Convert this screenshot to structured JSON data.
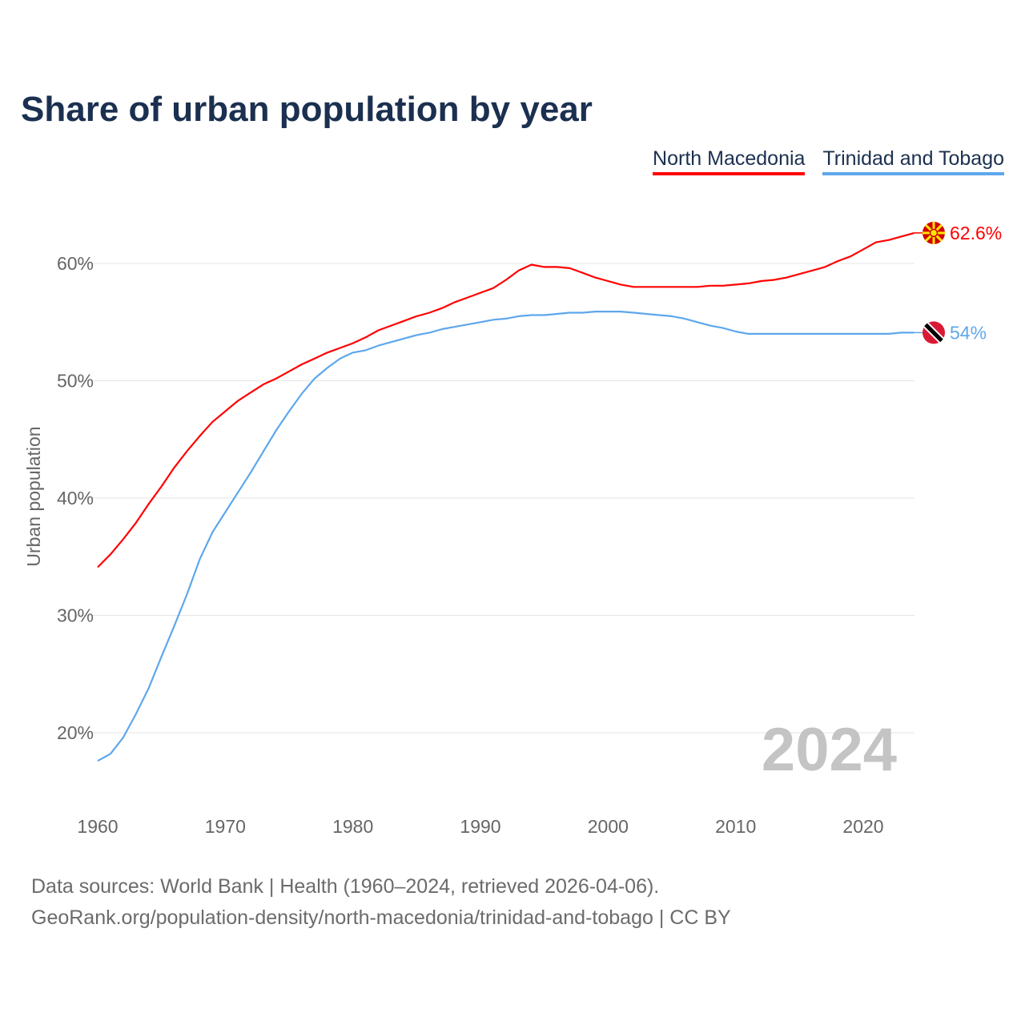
{
  "chart_data": {
    "type": "line",
    "title": "Share of urban population by year",
    "ylabel": "Urban population",
    "xlabel": "",
    "ylim": [
      15,
      65
    ],
    "xlim": [
      1960,
      2024
    ],
    "y_ticks": [
      "20%",
      "30%",
      "40%",
      "50%",
      "60%"
    ],
    "y_tick_values": [
      20,
      30,
      40,
      50,
      60
    ],
    "x_ticks": [
      "1960",
      "1970",
      "1980",
      "1990",
      "2000",
      "2010",
      "2020"
    ],
    "x_tick_values": [
      1960,
      1970,
      1980,
      1990,
      2000,
      2010,
      2020
    ],
    "grid": true,
    "legend_placement": "top-right",
    "year_watermark": "2024",
    "x_start": 1960,
    "series": [
      {
        "name": "North Macedonia",
        "color": "#ff0000",
        "end_label": "62.6%",
        "values": [
          34.1,
          35.2,
          36.5,
          37.9,
          39.5,
          41.0,
          42.6,
          44.0,
          45.3,
          46.5,
          47.4,
          48.3,
          49.0,
          49.7,
          50.2,
          50.8,
          51.4,
          51.9,
          52.4,
          52.8,
          53.2,
          53.7,
          54.3,
          54.7,
          55.1,
          55.5,
          55.8,
          56.2,
          56.7,
          57.1,
          57.5,
          57.9,
          58.6,
          59.4,
          59.9,
          59.7,
          59.7,
          59.6,
          59.2,
          58.8,
          58.5,
          58.2,
          58.0,
          58.0,
          58.0,
          58.0,
          58.0,
          58.0,
          58.1,
          58.1,
          58.2,
          58.3,
          58.5,
          58.6,
          58.8,
          59.1,
          59.4,
          59.7,
          60.2,
          60.6,
          61.2,
          61.8,
          62.0,
          62.3,
          62.6
        ]
      },
      {
        "name": "Trinidad and Tobago",
        "color": "#5ea7ec",
        "end_label": "54%",
        "values": [
          17.6,
          18.2,
          19.6,
          21.6,
          23.8,
          26.5,
          29.1,
          31.8,
          34.8,
          37.1,
          38.8,
          40.5,
          42.2,
          44.0,
          45.8,
          47.4,
          48.9,
          50.2,
          51.1,
          51.9,
          52.4,
          52.6,
          53.0,
          53.3,
          53.6,
          53.9,
          54.1,
          54.4,
          54.6,
          54.8,
          55.0,
          55.2,
          55.3,
          55.5,
          55.6,
          55.6,
          55.7,
          55.8,
          55.8,
          55.9,
          55.9,
          55.9,
          55.8,
          55.7,
          55.6,
          55.5,
          55.3,
          55.0,
          54.7,
          54.5,
          54.2,
          54.0,
          54.0,
          54.0,
          54.0,
          54.0,
          54.0,
          54.0,
          54.0,
          54.0,
          54.0,
          54.0,
          54.0,
          54.1,
          54.1
        ]
      }
    ]
  },
  "footer": {
    "line1": "Data sources: World Bank | Health (1960–2024, retrieved 2026-04-06).",
    "line2": "GeoRank.org/population-density/north-macedonia/trinidad-and-tobago | CC BY"
  }
}
